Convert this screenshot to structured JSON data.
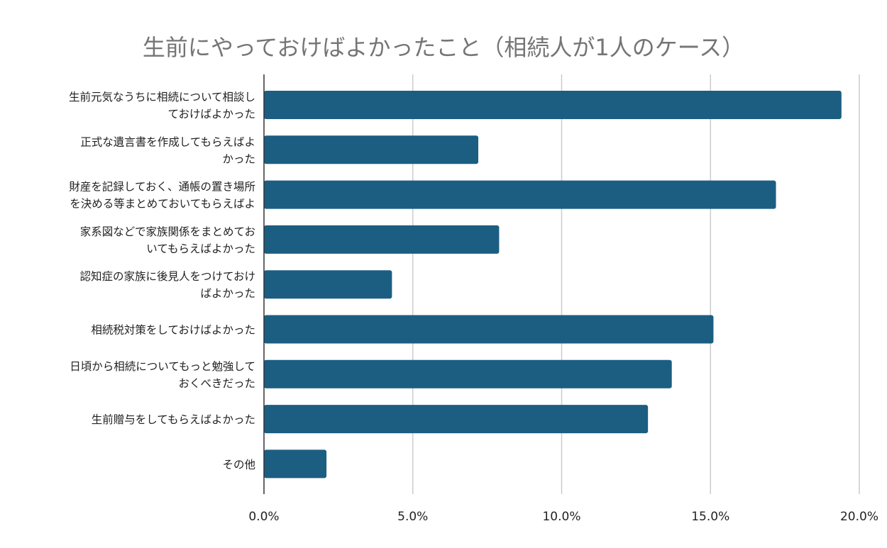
{
  "chart_data": {
    "type": "bar",
    "orientation": "horizontal",
    "title": "生前にやっておけばよかったこと（相続人が1人のケース）",
    "categories": [
      [
        "生前元気なうちに相続について相談し",
        "ておけばよかった"
      ],
      [
        "正式な遺言書を作成してもらえばよ",
        "かった"
      ],
      [
        "財産を記録しておく、通帳の置き場所",
        "を決める等まとめておいてもらえばよ"
      ],
      [
        "家系図などで家族関係をまとめてお",
        "いてもらえばよかった"
      ],
      [
        "認知症の家族に後見人をつけておけ",
        "ばよかった"
      ],
      [
        "相続税対策をしておけばよかった"
      ],
      [
        "日頃から相続についてもっと勉強して",
        "おくべきだった"
      ],
      [
        "生前贈与をしてもらえばよかった"
      ],
      [
        "その他"
      ]
    ],
    "values": [
      19.4,
      7.2,
      17.2,
      7.9,
      4.3,
      15.1,
      13.7,
      12.9,
      2.1
    ],
    "xlim": [
      0,
      20
    ],
    "xticks": [
      "0.0%",
      "5.0%",
      "10.0%",
      "15.0%",
      "20.0%"
    ],
    "xlabel": "",
    "ylabel": "",
    "grid": "vertical",
    "bar_color": "#1b5e82",
    "grid_color": "#cccccc"
  }
}
